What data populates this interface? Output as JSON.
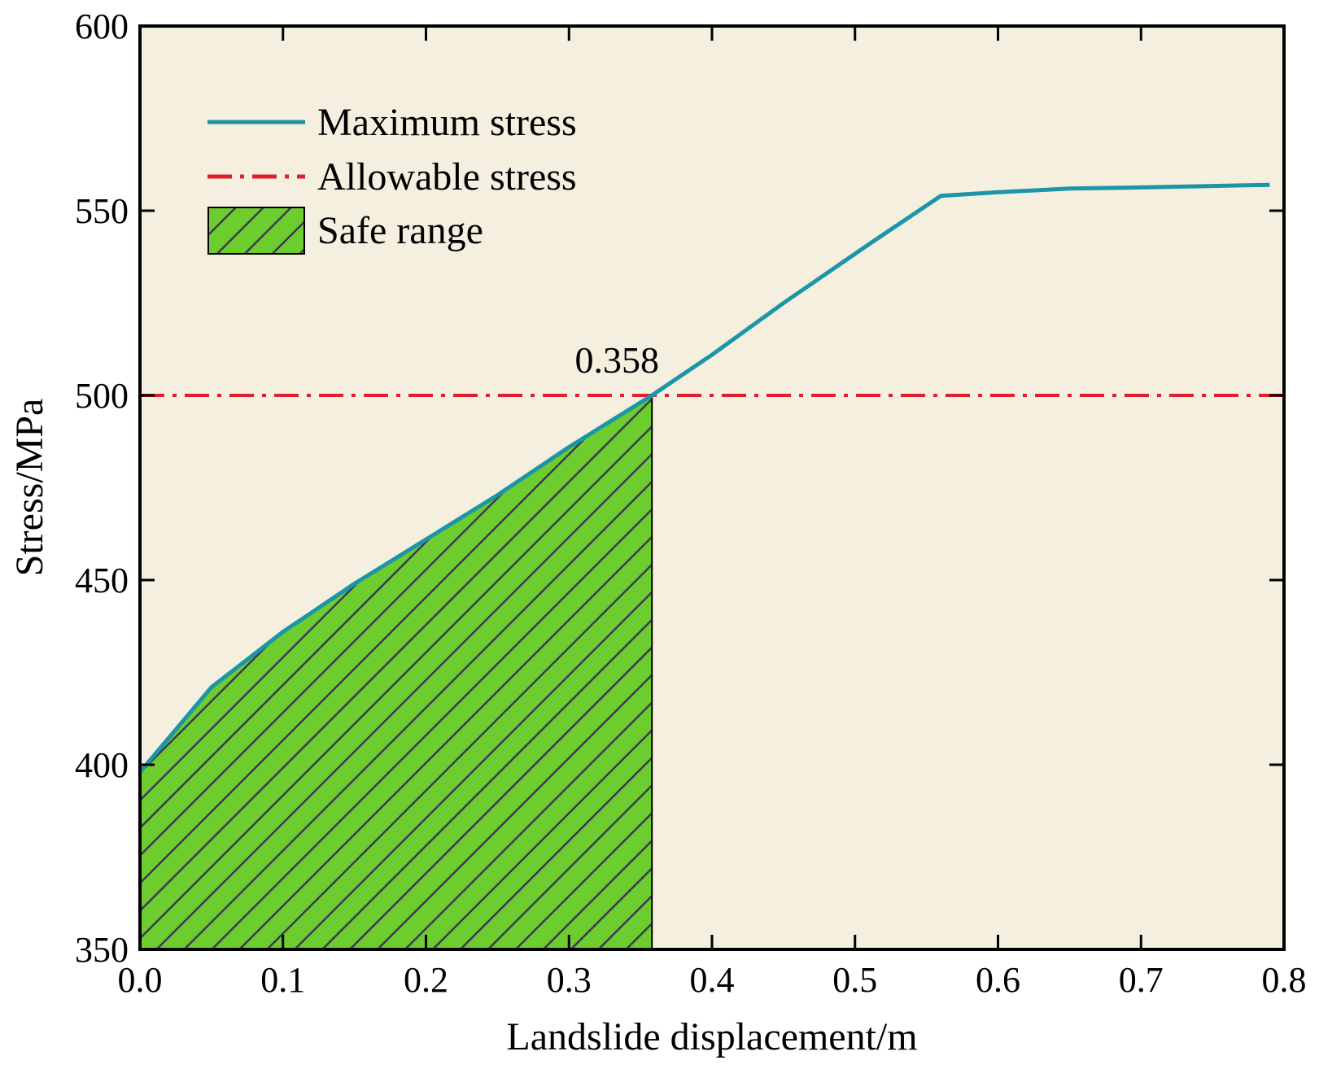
{
  "chart_data": {
    "type": "line",
    "title": "",
    "xlabel": "Landslide displacement/m",
    "ylabel": "Stress/MPa",
    "xlim": [
      0.0,
      0.8
    ],
    "ylim": [
      350,
      600
    ],
    "x_ticks": [
      "0.0",
      "0.1",
      "0.2",
      "0.3",
      "0.4",
      "0.5",
      "0.6",
      "0.7",
      "0.8"
    ],
    "y_ticks": [
      "350",
      "400",
      "450",
      "500",
      "550",
      "600"
    ],
    "series": [
      {
        "name": "Maximum stress",
        "style": "solid",
        "color": "#1b95a8",
        "x": [
          0.0,
          0.05,
          0.1,
          0.15,
          0.2,
          0.25,
          0.3,
          0.358,
          0.4,
          0.45,
          0.51,
          0.56,
          0.6,
          0.65,
          0.7,
          0.75,
          0.79
        ],
        "y": [
          398,
          421,
          436,
          449,
          461,
          473,
          486,
          500,
          511,
          525,
          541,
          554,
          555,
          556,
          556.3,
          556.7,
          557
        ]
      },
      {
        "name": "Allowable stress",
        "style": "dash-dot",
        "color": "#e0202e",
        "x": [
          0.0,
          0.8
        ],
        "y": [
          500,
          500
        ]
      }
    ],
    "legend": {
      "placement": "top-left",
      "entries": [
        "Maximum stress",
        "Allowable stress",
        "Safe range"
      ]
    },
    "safe_range": {
      "name": "Safe range",
      "x_max": 0.358,
      "fill_color": "#6dcc2e",
      "hatch_color": "#3a3a55"
    },
    "annotations": [
      {
        "text": "0.358",
        "x": 0.358,
        "y": 500
      }
    ],
    "plot_background": "#f4efdf"
  }
}
